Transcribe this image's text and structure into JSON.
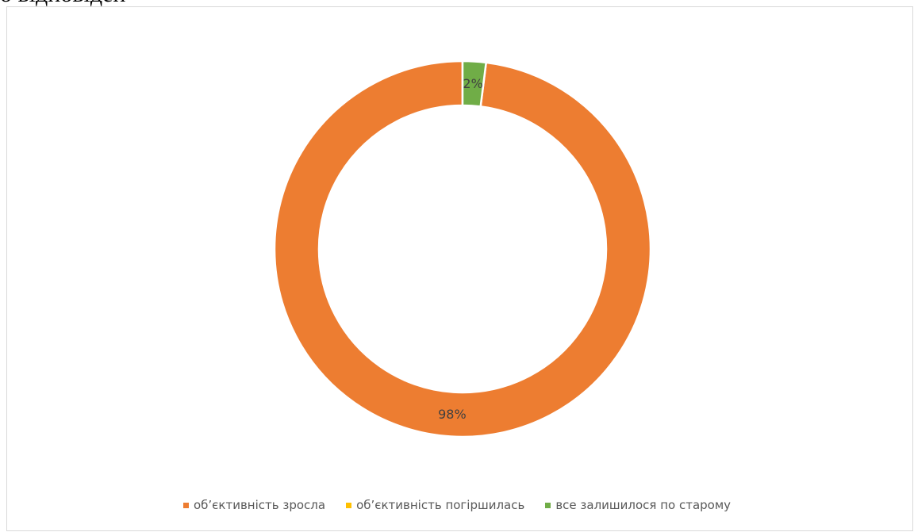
{
  "header_fragment": "о відповідей",
  "chart_data": {
    "type": "pie",
    "variant": "doughnut",
    "title": "",
    "categories": [
      "об’єктивність зросла",
      "об’єктивність погіршилась",
      "все залишилося по старому"
    ],
    "values": [
      98,
      0,
      2
    ],
    "data_labels": [
      "98%",
      "",
      "2%"
    ],
    "colors": [
      "#ED7D31",
      "#FFC000",
      "#70AD47"
    ],
    "legend_position": "bottom",
    "start_angle_deg": 0,
    "direction": "counterclockwise"
  }
}
